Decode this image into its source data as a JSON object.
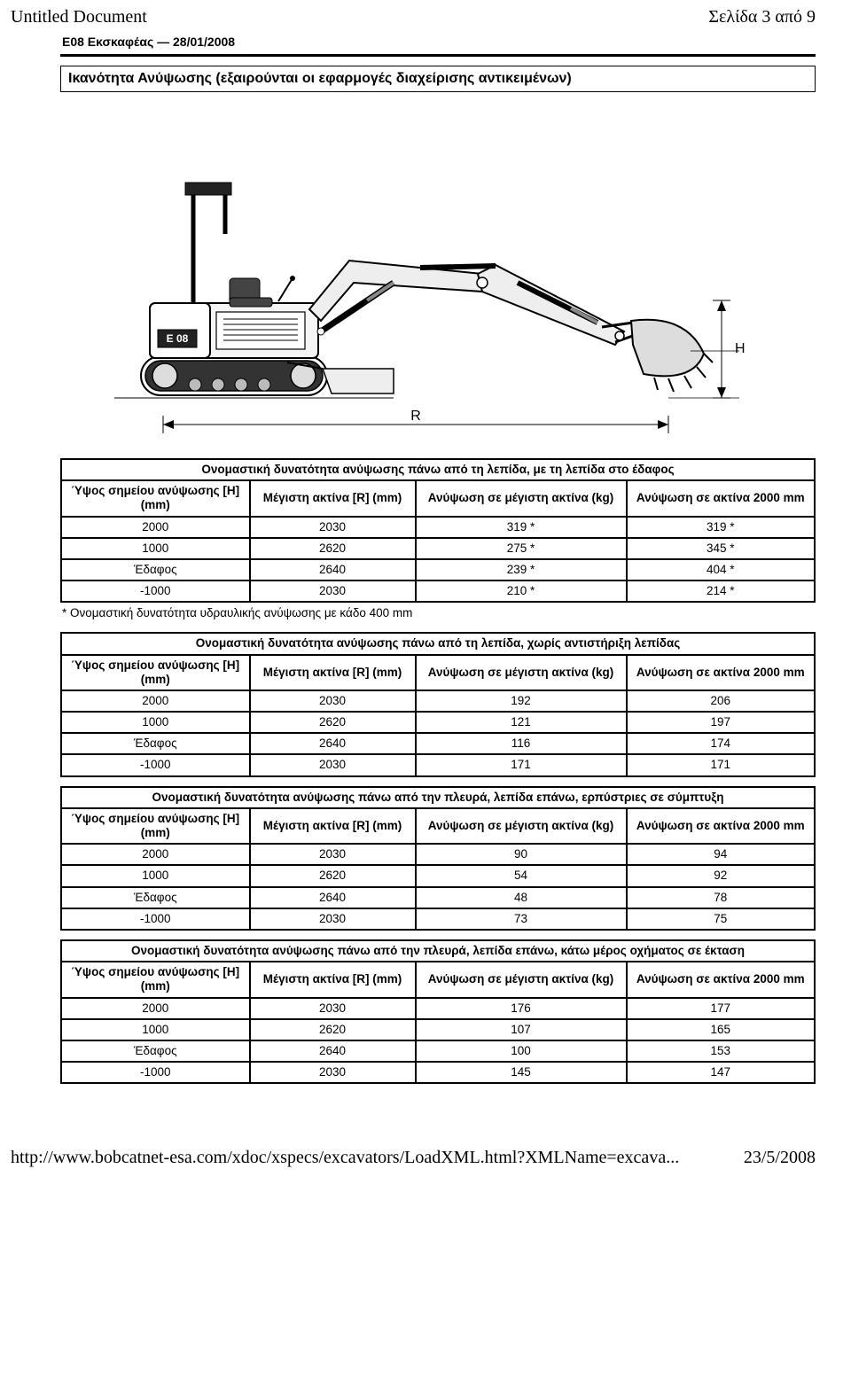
{
  "page": {
    "doc_title": "Untitled Document",
    "page_label": "Σελίδα 3 από 9",
    "header": "E08 Εκσκαφέας — 28/01/2008",
    "section_title": "Ικανότητα Ανύψωσης (εξαιρούνται οι εφαρμογές διαχείρισης αντικειμένων)",
    "footnote": "* Ονομαστική δυνατότητα υδραυλικής ανύψωσης με κάδο 400 mm",
    "footer_url": "http://www.bobcatnet-esa.com/xdoc/xspecs/excavators/LoadXML.html?XMLName=excava...",
    "footer_date": "23/5/2008"
  },
  "diagram": {
    "label_H": "H",
    "label_R": "R",
    "model": "E 08"
  },
  "col_headers": {
    "h": "Ύψος σημείου ανύψωσης [H] (mm)",
    "r": "Μέγιστη ακτίνα [R] (mm)",
    "max": "Ανύψωση σε μέγιστη ακτίνα (kg)",
    "at": "Ανύψωση σε ακτίνα 2000 mm"
  },
  "tables": [
    {
      "title": "Ονομαστική δυνατότητα ανύψωσης πάνω από τη λεπίδα, με τη λεπίδα στο έδαφος",
      "rows": [
        [
          "2000",
          "2030",
          "319 *",
          "319 *"
        ],
        [
          "1000",
          "2620",
          "275 *",
          "345 *"
        ],
        [
          "Έδαφος",
          "2640",
          "239 *",
          "404 *"
        ],
        [
          "-1000",
          "2030",
          "210 *",
          "214 *"
        ]
      ]
    },
    {
      "title": "Ονομαστική δυνατότητα ανύψωσης πάνω από τη λεπίδα, χωρίς αντιστήριξη λεπίδας",
      "rows": [
        [
          "2000",
          "2030",
          "192",
          "206"
        ],
        [
          "1000",
          "2620",
          "121",
          "197"
        ],
        [
          "Έδαφος",
          "2640",
          "116",
          "174"
        ],
        [
          "-1000",
          "2030",
          "171",
          "171"
        ]
      ]
    },
    {
      "title": "Ονομαστική δυνατότητα ανύψωσης πάνω από την πλευρά, λεπίδα επάνω, ερπύστριες σε σύμπτυξη",
      "rows": [
        [
          "2000",
          "2030",
          "90",
          "94"
        ],
        [
          "1000",
          "2620",
          "54",
          "92"
        ],
        [
          "Έδαφος",
          "2640",
          "48",
          "78"
        ],
        [
          "-1000",
          "2030",
          "73",
          "75"
        ]
      ]
    },
    {
      "title": "Ονομαστική δυνατότητα ανύψωσης πάνω από την πλευρά, λεπίδα επάνω, κάτω μέρος οχήματος σε έκταση",
      "rows": [
        [
          "2000",
          "2030",
          "176",
          "177"
        ],
        [
          "1000",
          "2620",
          "107",
          "165"
        ],
        [
          "Έδαφος",
          "2640",
          "100",
          "153"
        ],
        [
          "-1000",
          "2030",
          "145",
          "147"
        ]
      ]
    }
  ]
}
